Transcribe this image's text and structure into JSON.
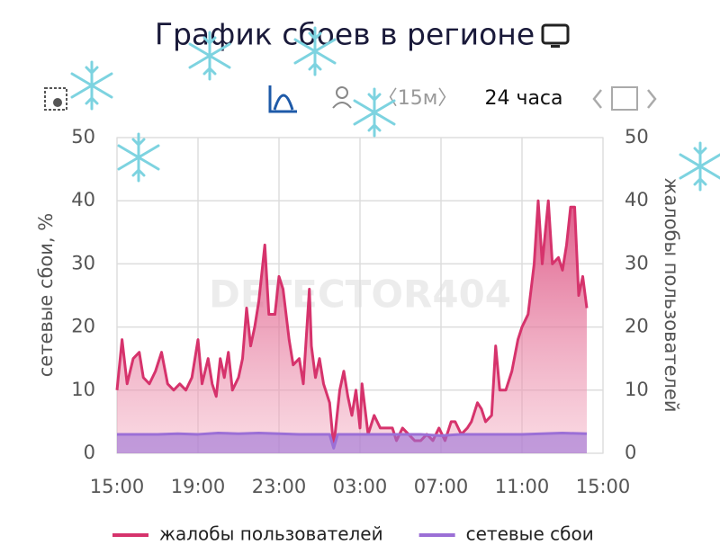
{
  "chart_data": {
    "type": "line",
    "title": "График сбоев в регионе",
    "toolbar": {
      "interval": "〈15м〉",
      "range": "24 часа"
    },
    "watermark": "DETECTOR404",
    "ylabel": "сетевые сбои, %",
    "y2label": "жалобы пользователей",
    "xlim": [
      0,
      24
    ],
    "xticks": [
      {
        "value": 0,
        "label": "15:00"
      },
      {
        "value": 4,
        "label": "19:00"
      },
      {
        "value": 8,
        "label": "23:00"
      },
      {
        "value": 12,
        "label": "03:00"
      },
      {
        "value": 16,
        "label": "07:00"
      },
      {
        "value": 20,
        "label": "11:00"
      },
      {
        "value": 24,
        "label": "15:00"
      }
    ],
    "ylim": [
      0,
      50
    ],
    "yticks": [
      0,
      10,
      20,
      30,
      40,
      50
    ],
    "y2lim": [
      0,
      50
    ],
    "y2ticks": [
      0,
      10,
      20,
      30,
      40,
      50
    ],
    "grid": true,
    "series": [
      {
        "name": "жалобы пользователей",
        "color": "#d6336c",
        "axis": "y2",
        "x": [
          0,
          0.25,
          0.5,
          0.8,
          1.1,
          1.3,
          1.6,
          1.9,
          2.2,
          2.5,
          2.8,
          3.1,
          3.4,
          3.7,
          4.0,
          4.2,
          4.5,
          4.7,
          4.9,
          5.1,
          5.3,
          5.5,
          5.7,
          6.0,
          6.2,
          6.4,
          6.6,
          6.8,
          7.0,
          7.3,
          7.5,
          7.8,
          8.0,
          8.2,
          8.5,
          8.7,
          9.0,
          9.2,
          9.5,
          9.6,
          9.8,
          10.0,
          10.2,
          10.5,
          10.7,
          11.0,
          11.2,
          11.4,
          11.6,
          11.8,
          12.0,
          12.1,
          12.4,
          12.7,
          13.0,
          13.3,
          13.6,
          13.8,
          14.1,
          14.4,
          14.7,
          15.0,
          15.3,
          15.6,
          15.9,
          16.2,
          16.5,
          16.7,
          17.0,
          17.3,
          17.5,
          17.8,
          18.0,
          18.2,
          18.5,
          18.7,
          18.9,
          19.2,
          19.5,
          19.8,
          20.0,
          20.3,
          20.6,
          20.8,
          21.0,
          21.3,
          21.5,
          21.8,
          22.0,
          22.2,
          22.4,
          22.6,
          22.8,
          23.0,
          23.2
        ],
        "values": [
          10,
          18,
          11,
          15,
          16,
          12,
          11,
          13,
          16,
          11,
          10,
          11,
          10,
          12,
          18,
          11,
          15,
          11,
          9,
          15,
          12,
          16,
          10,
          12,
          15,
          23,
          17,
          20,
          24,
          33,
          22,
          22,
          28,
          26,
          18,
          14,
          15,
          11,
          26,
          17,
          12,
          15,
          11,
          8,
          1,
          10,
          13,
          9,
          6,
          10,
          4,
          11,
          3,
          6,
          4,
          4,
          4,
          2,
          4,
          3,
          2,
          2,
          3,
          2,
          4,
          2,
          5,
          5,
          3,
          4,
          5,
          8,
          7,
          5,
          6,
          17,
          10,
          10,
          13,
          18,
          20,
          22,
          30,
          40,
          30,
          40,
          30,
          31,
          29,
          33,
          39,
          39,
          25,
          28,
          23
        ]
      },
      {
        "name": "сетевые сбои",
        "color": "#9b6fd6",
        "x": [
          0,
          1,
          2,
          3,
          4,
          5,
          6,
          7,
          8,
          9,
          10,
          10.5,
          10.7,
          10.9,
          11.5,
          12,
          13,
          14,
          15,
          16,
          17,
          18,
          19,
          20,
          21,
          22,
          23.2
        ],
        "values": [
          3,
          3,
          3,
          3.1,
          3,
          3.2,
          3.1,
          3.2,
          3.1,
          3,
          3,
          3,
          0.8,
          3,
          3,
          3,
          3,
          3,
          3,
          2.8,
          3,
          3,
          3,
          3,
          3.1,
          3.2,
          3.1
        ]
      }
    ]
  }
}
